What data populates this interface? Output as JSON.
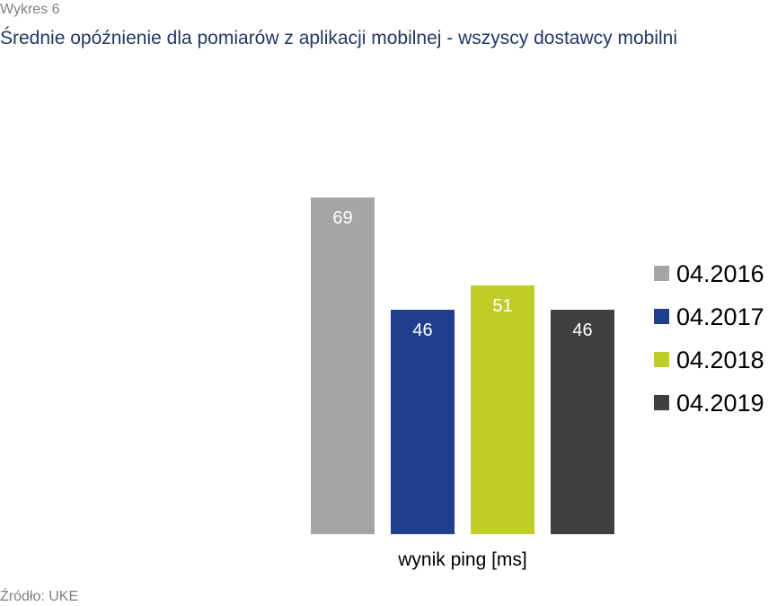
{
  "caption": "Wykres 6",
  "title": "Średnie opóźnienie dla pomiarów z aplikacji mobilnej - wszyscy dostawcy mobilni",
  "source": "Źródło: UKE",
  "chart_data": {
    "type": "bar",
    "title": "Średnie opóźnienie dla pomiarów z aplikacji mobilnej - wszyscy dostawcy mobilni",
    "xlabel": "wynik ping [ms]",
    "ylabel": "",
    "categories": [
      "wynik ping [ms]"
    ],
    "series": [
      {
        "name": "04.2016",
        "values": [
          69
        ],
        "color": "#a5a5a5"
      },
      {
        "name": "04.2017",
        "values": [
          46
        ],
        "color": "#203e8e"
      },
      {
        "name": "04.2018",
        "values": [
          51
        ],
        "color": "#c0cd29"
      },
      {
        "name": "04.2019",
        "values": [
          46
        ],
        "color": "#404040"
      }
    ],
    "ylim": [
      0,
      69
    ],
    "grid": false,
    "data_labels": true,
    "legend": "right"
  }
}
